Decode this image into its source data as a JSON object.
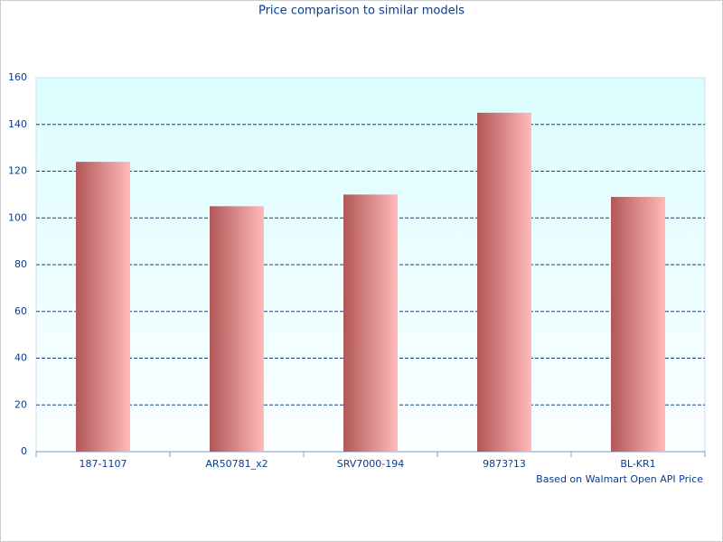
{
  "chart_data": {
    "type": "bar",
    "title": "Price comparison to similar models",
    "categories": [
      "187-1107",
      "AR50781_x2",
      "SRV7000-194",
      "9873?13",
      "BL-KR1"
    ],
    "values": [
      124,
      105,
      110,
      145,
      109
    ],
    "color": [
      "#b25757",
      "#ffbaba"
    ],
    "ylim": [
      0,
      160
    ],
    "yticks": [
      0,
      20,
      40,
      60,
      80,
      100,
      120,
      140,
      160
    ],
    "grid": true,
    "note": "Based on Walmart Open API Price"
  }
}
